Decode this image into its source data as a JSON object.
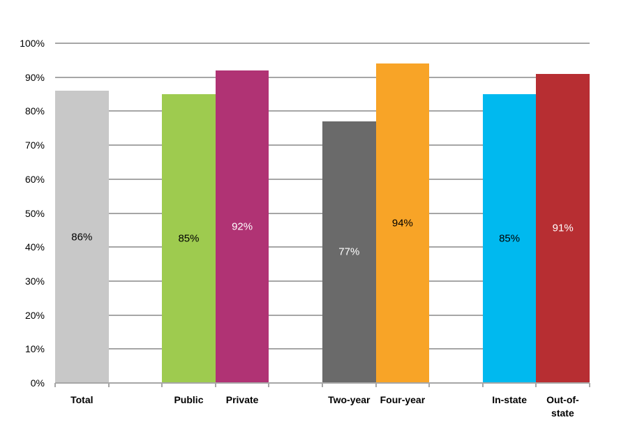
{
  "chart_data": {
    "type": "bar",
    "title": "",
    "xlabel": "",
    "ylabel": "",
    "ylim": [
      0,
      100
    ],
    "yticks": [
      "0%",
      "10%",
      "20%",
      "30%",
      "40%",
      "50%",
      "60%",
      "70%",
      "80%",
      "90%",
      "100%"
    ],
    "grid": true,
    "legend": null,
    "categories": [
      "Total",
      "Public",
      "Private",
      "Two-year",
      "Four-year",
      "In-state",
      "Out-of-state"
    ],
    "values": [
      86,
      85,
      92,
      77,
      94,
      85,
      91
    ],
    "data_labels": [
      "86%",
      "85%",
      "92%",
      "77%",
      "94%",
      "85%",
      "91%"
    ],
    "colors": [
      "#c8c8c8",
      "#9ecb4f",
      "#b03374",
      "#6a6a6a",
      "#f8a427",
      "#00b9ef",
      "#b72e32"
    ],
    "label_colors": [
      "#000000",
      "#000000",
      "#ffffff",
      "#ffffff",
      "#000000",
      "#000000",
      "#ffffff"
    ],
    "slot_positions": [
      0,
      2,
      3,
      5,
      6,
      8,
      9
    ],
    "groups": [
      [
        "Total"
      ],
      [
        "Public",
        "Private"
      ],
      [
        "Two-year",
        "Four-year"
      ],
      [
        "In-state",
        "Out-of-state"
      ]
    ]
  }
}
